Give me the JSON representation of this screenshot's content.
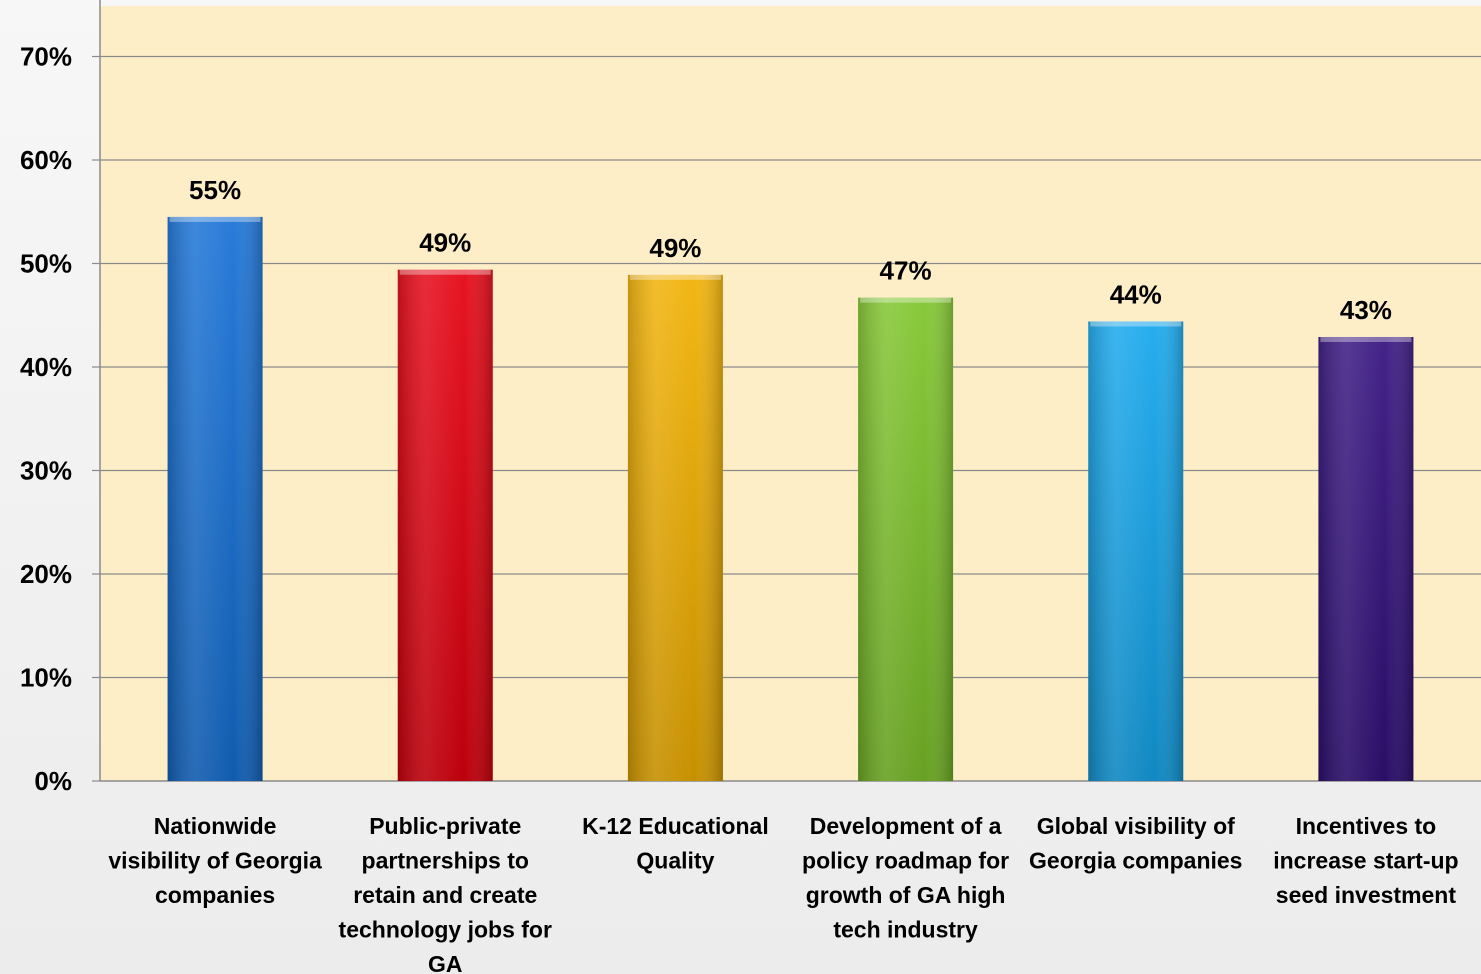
{
  "chart_data": {
    "type": "bar",
    "title": "",
    "xlabel": "",
    "ylabel": "",
    "ylim": [
      0,
      0.72
    ],
    "yticks": [
      0,
      0.1,
      0.2,
      0.3,
      0.4,
      0.5,
      0.6,
      0.7
    ],
    "ytick_labels": [
      "0%",
      "10%",
      "20%",
      "30%",
      "40%",
      "50%",
      "60%",
      "70%"
    ],
    "grid": true,
    "legend": "none",
    "plot_background": "#fdeec8",
    "categories": [
      "Nationwide visibility of Georgia companies",
      "Public-private partnerships to retain and create technology jobs for GA",
      "K-12 Educational Quality",
      "Development of a policy roadmap for growth of GA high tech industry",
      "Global visibility of Georgia companies",
      "Incentives to increase start-up seed investment"
    ],
    "category_lines": [
      [
        "Nationwide",
        "visibility of Georgia",
        "companies"
      ],
      [
        "Public-private",
        "partnerships to",
        "retain and create",
        "technology jobs for",
        "GA"
      ],
      [
        "K-12 Educational",
        "Quality"
      ],
      [
        "Development of a",
        "policy roadmap for",
        "growth of GA high",
        "tech industry"
      ],
      [
        "Global visibility of",
        "Georgia companies"
      ],
      [
        "Incentives to",
        "increase start-up",
        "seed investment"
      ]
    ],
    "values": [
      0.545,
      0.494,
      0.489,
      0.467,
      0.444,
      0.429
    ],
    "value_labels": [
      "55%",
      "49%",
      "49%",
      "47%",
      "44%",
      "43%"
    ],
    "colors": [
      "#1570d6",
      "#e5000f",
      "#f1b000",
      "#7ec42a",
      "#13a6ec",
      "#33107e"
    ]
  }
}
